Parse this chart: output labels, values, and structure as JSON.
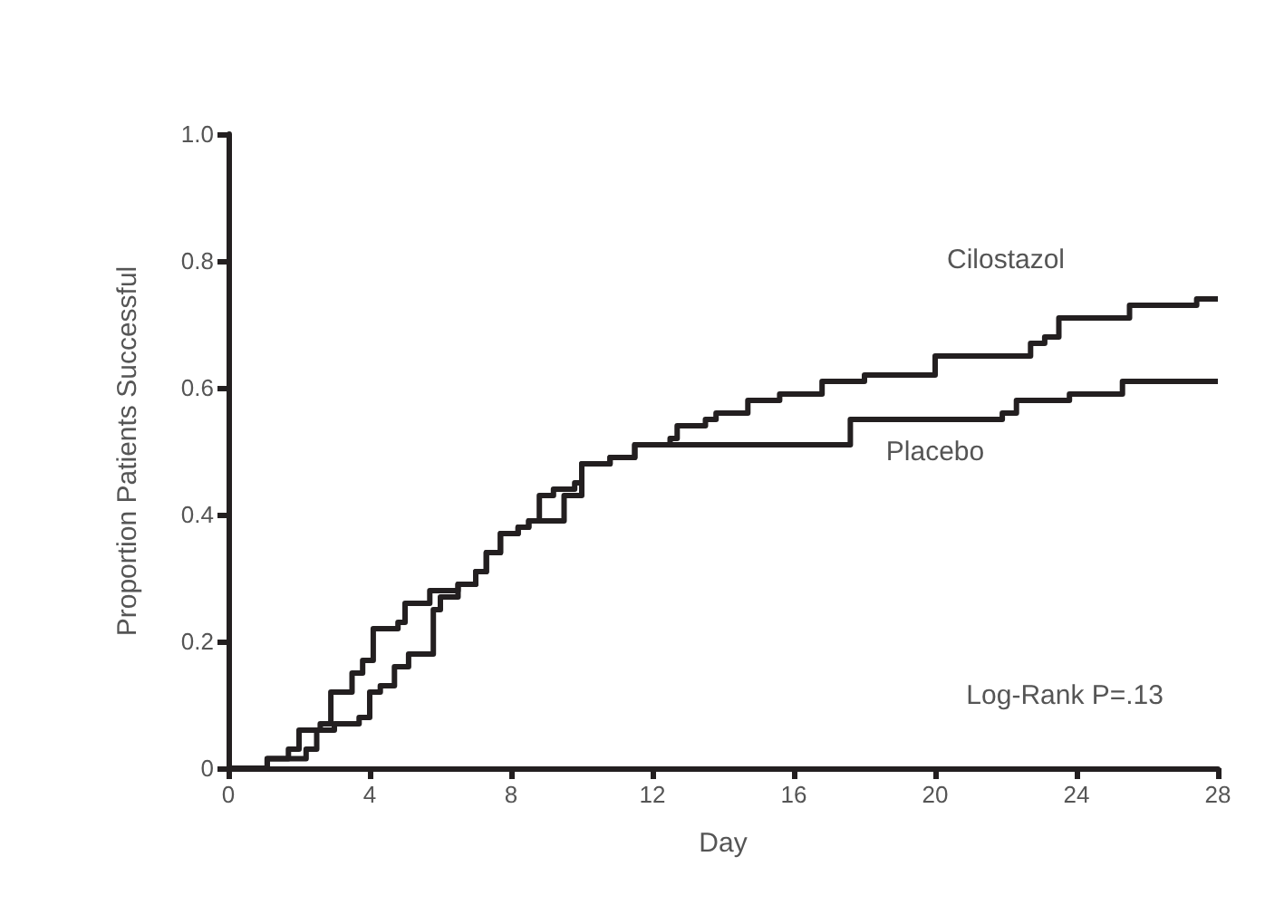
{
  "chart_data": {
    "type": "step",
    "xlabel": "Day",
    "ylabel": "Proportion Patients Successful",
    "xlim": [
      0,
      28
    ],
    "xticks": [
      0,
      4,
      8,
      12,
      16,
      20,
      24,
      28
    ],
    "ylim": [
      0,
      1
    ],
    "yticks": [
      0,
      0.2,
      0.4,
      0.6,
      0.8,
      {
        "value": 1,
        "label": "1.0"
      }
    ],
    "grid": false,
    "legend": false,
    "marker": "none",
    "line_style": "solid",
    "annotations": [
      "Log-Rank P=.13"
    ],
    "series": [
      {
        "name": "Cilostazol",
        "color": "#231f20",
        "x": [
          0,
          1.1,
          1.7,
          2.0,
          2.6,
          2.9,
          3.5,
          3.8,
          4.1,
          4.8,
          5.0,
          5.7,
          6.5,
          7.0,
          7.3,
          7.7,
          8.2,
          8.5,
          8.8,
          9.2,
          9.8,
          10.0,
          10.8,
          11.5,
          12.5,
          12.7,
          13.5,
          13.8,
          14.7,
          15.6,
          16.8,
          18.0,
          20.0,
          22.7,
          23.1,
          23.5,
          25.5,
          27.4,
          28
        ],
        "values": [
          0,
          0.015,
          0.03,
          0.06,
          0.07,
          0.12,
          0.15,
          0.17,
          0.22,
          0.23,
          0.26,
          0.28,
          0.29,
          0.31,
          0.34,
          0.37,
          0.38,
          0.39,
          0.43,
          0.44,
          0.45,
          0.48,
          0.49,
          0.51,
          0.52,
          0.54,
          0.55,
          0.56,
          0.58,
          0.59,
          0.61,
          0.62,
          0.65,
          0.67,
          0.68,
          0.71,
          0.73,
          0.74,
          0.74
        ]
      },
      {
        "name": "Placebo",
        "color": "#231f20",
        "x": [
          0,
          1.1,
          2.2,
          2.5,
          3.0,
          3.7,
          4.0,
          4.3,
          4.7,
          5.1,
          5.8,
          6.0,
          6.5,
          7.0,
          7.3,
          7.7,
          8.2,
          8.5,
          9.5,
          10.0,
          10.8,
          11.5,
          17.6,
          21.9,
          22.3,
          23.8,
          25.3,
          28
        ],
        "values": [
          0,
          0.015,
          0.03,
          0.06,
          0.07,
          0.08,
          0.12,
          0.13,
          0.16,
          0.18,
          0.25,
          0.27,
          0.29,
          0.31,
          0.34,
          0.37,
          0.38,
          0.39,
          0.43,
          0.48,
          0.49,
          0.51,
          0.55,
          0.56,
          0.58,
          0.59,
          0.61,
          0.61
        ]
      }
    ]
  }
}
